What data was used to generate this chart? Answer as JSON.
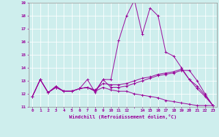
{
  "xlabel": "Windchill (Refroidissement éolien,°C)",
  "background_color": "#ceeeed",
  "grid_color": "#ffffff",
  "line_color": "#990099",
  "xlim": [
    -0.5,
    23.5
  ],
  "ylim": [
    11,
    19
  ],
  "yticks": [
    11,
    12,
    13,
    14,
    15,
    16,
    17,
    18,
    19
  ],
  "series": [
    [
      11.8,
      13.1,
      12.1,
      12.6,
      12.2,
      12.2,
      12.4,
      13.1,
      12.1,
      13.1,
      13.1,
      16.1,
      18.0,
      19.2,
      16.6,
      18.6,
      18.0,
      15.2,
      14.9,
      14.0,
      13.1,
      12.6,
      11.9,
      11.1
    ],
    [
      11.8,
      13.1,
      12.1,
      12.5,
      12.2,
      12.2,
      12.4,
      12.5,
      12.2,
      13.1,
      12.5,
      12.5,
      12.6,
      12.8,
      13.0,
      13.2,
      13.4,
      13.5,
      13.6,
      13.8,
      13.8,
      13.0,
      12.0,
      11.1
    ],
    [
      11.8,
      13.1,
      12.1,
      12.5,
      12.2,
      12.2,
      12.4,
      12.5,
      12.3,
      12.8,
      12.7,
      12.7,
      12.8,
      13.0,
      13.2,
      13.3,
      13.5,
      13.6,
      13.7,
      13.9,
      13.1,
      12.4,
      11.8,
      11.1
    ],
    [
      11.8,
      13.1,
      12.1,
      12.5,
      12.2,
      12.2,
      12.4,
      12.5,
      12.2,
      12.5,
      12.3,
      12.2,
      12.2,
      12.0,
      11.9,
      11.8,
      11.7,
      11.5,
      11.4,
      11.3,
      11.2,
      11.1,
      11.1,
      11.1
    ]
  ]
}
